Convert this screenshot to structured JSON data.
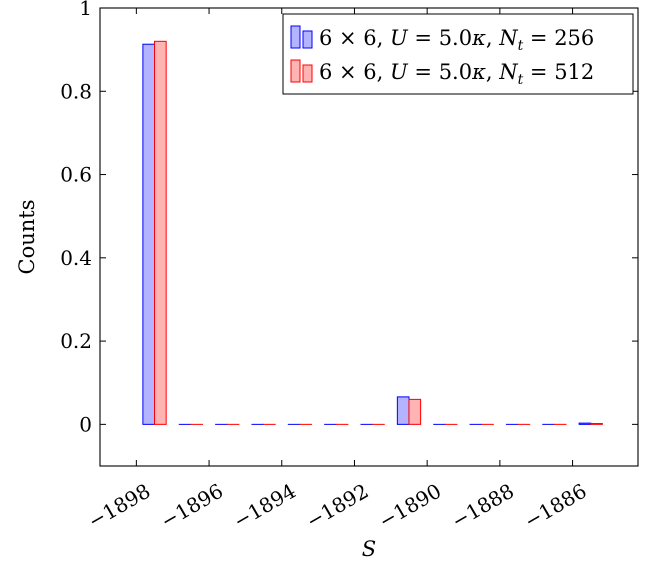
{
  "chart_data": {
    "type": "bar",
    "xlabel": "S",
    "ylabel": "Counts",
    "xlim": [
      -1899,
      -1884.2
    ],
    "ylim": [
      -0.1,
      1.0
    ],
    "x_ticks": [
      -1898,
      -1896,
      -1894,
      -1892,
      -1890,
      -1888,
      -1886
    ],
    "x_tick_labels": [
      "−1898",
      "−1896",
      "−1894",
      "−1892",
      "−1890",
      "−1888",
      "−1886"
    ],
    "y_ticks": [
      0,
      0.2,
      0.4,
      0.6,
      0.8,
      1
    ],
    "y_tick_labels": [
      "0",
      "0.2",
      "0.4",
      "0.6",
      "0.8",
      "1"
    ],
    "x": [
      -1897.5,
      -1896.5,
      -1895.5,
      -1894.5,
      -1893.5,
      -1892.5,
      -1891.5,
      -1890.5,
      -1889.5,
      -1888.5,
      -1887.5,
      -1886.5,
      -1885.5
    ],
    "legend_position": "top-right",
    "grid": false,
    "series": [
      {
        "name": "6 × 6, U = 5.0κ, N_t = 256",
        "color": "#0000ff",
        "fill": "#b3b3ff",
        "values": [
          0.913,
          0,
          0,
          0,
          0,
          0,
          0,
          0.066,
          0,
          0,
          0,
          0,
          0.003
        ]
      },
      {
        "name": "6 × 6, U = 5.0κ, N_t = 512",
        "color": "#ff0000",
        "fill": "#ffb3b3",
        "values": [
          0.92,
          0,
          0,
          0,
          0,
          0,
          0,
          0.06,
          0,
          0,
          0,
          0,
          0.002
        ]
      }
    ]
  }
}
